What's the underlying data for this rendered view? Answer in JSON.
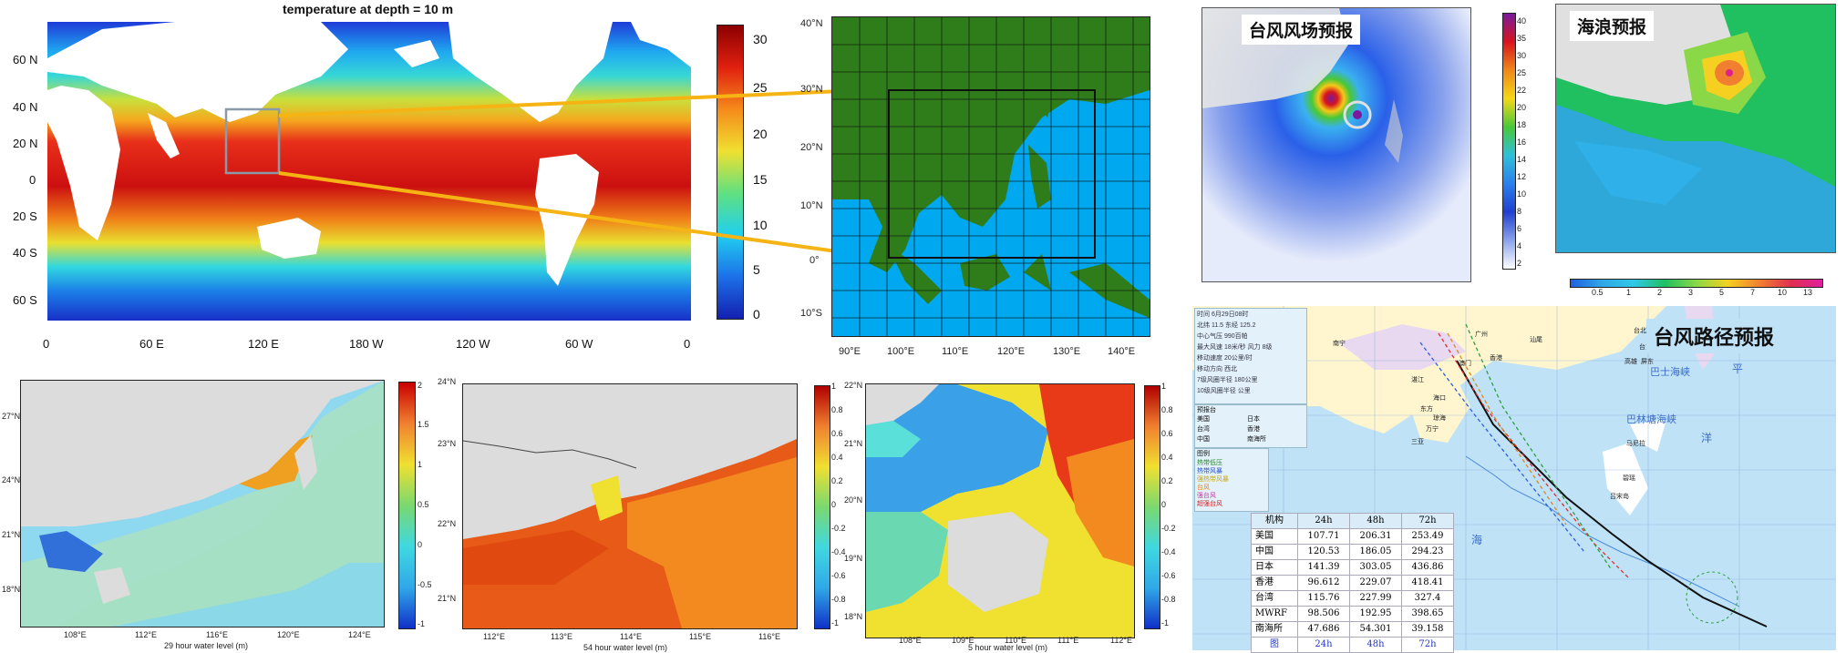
{
  "global_sst": {
    "title": "temperature at depth = 10 m",
    "lat_labels": [
      "60 N",
      "40 N",
      "20 N",
      "0",
      "20 S",
      "40 S",
      "60 S"
    ],
    "lon_labels": [
      "0",
      "60 E",
      "120 E",
      "180 W",
      "120 W",
      "60 W",
      "0"
    ],
    "colorbar_ticks": [
      "30",
      "25",
      "20",
      "15",
      "10",
      "5",
      "0"
    ]
  },
  "domain_map": {
    "lat_labels": [
      "40°N",
      "30°N",
      "20°N",
      "10°N",
      "0°",
      "10°S"
    ],
    "lon_labels": [
      "90°E",
      "100°E",
      "110°E",
      "120°E",
      "130°E",
      "140°E"
    ]
  },
  "typhoon_wind": {
    "label": "台风风场预报",
    "colorbar_ticks": [
      "40",
      "35",
      "30",
      "25",
      "22",
      "20",
      "18",
      "16",
      "14",
      "12",
      "10",
      "8",
      "6",
      "4",
      "2"
    ]
  },
  "wave": {
    "label": "海浪预报",
    "colorbar_ticks": [
      "0.5",
      "1",
      "2",
      "3",
      "5",
      "7",
      "10",
      "13"
    ]
  },
  "track": {
    "label": "台风路径预报",
    "info_lines": [
      "时间 6月29日08时",
      "北纬 11.5  东经 125.2",
      "中心气压 990百帕",
      "最大风速 18米/秒  风力 8级",
      "移动速度 20公里/时",
      "移动方向 西北",
      "7级风圈半径 180公里",
      "10级风圈半径 公里"
    ],
    "legend_title": "预报台",
    "legend_items": [
      "美国",
      "日本",
      "台湾",
      "香港",
      "中国",
      "南海所"
    ],
    "legend2_title": "图例",
    "legend2_items": [
      "热带低压",
      "热带风暴",
      "强热带风暴",
      "台风",
      "强台风",
      "超强台风"
    ],
    "sea_labels": [
      "巴士海峡",
      "巴林塘海峡",
      "洋",
      "海",
      "平"
    ],
    "place_labels": [
      "南宁",
      "广州",
      "汕尾",
      "香港",
      "澳门",
      "湛江",
      "海口",
      "三亚",
      "万宁",
      "琼海",
      "东方",
      "台北",
      "台东",
      "屏东",
      "高雄",
      "马尼拉",
      "碧瑶",
      "吕宋岛"
    ],
    "table": {
      "headers": [
        "机构",
        "24h",
        "48h",
        "72h"
      ],
      "rows": [
        [
          "美国",
          "107.71",
          "206.31",
          "253.49"
        ],
        [
          "中国",
          "120.53",
          "186.05",
          "294.23"
        ],
        [
          "日本",
          "141.39",
          "303.05",
          "436.86"
        ],
        [
          "香港",
          "96.612",
          "229.07",
          "418.41"
        ],
        [
          "台湾",
          "115.76",
          "227.99",
          "327.4"
        ],
        [
          "MWRF",
          "98.506",
          "192.95",
          "398.65"
        ],
        [
          "南海所",
          "47.686",
          "54.301",
          "39.158"
        ]
      ],
      "footer": [
        "图",
        "24h",
        "48h",
        "72h"
      ]
    }
  },
  "water_a": {
    "caption": "29 hour water level (m)",
    "lat_labels": [
      "27°N",
      "24°N",
      "21°N",
      "18°N"
    ],
    "lon_labels": [
      "108°E",
      "112°E",
      "116°E",
      "120°E",
      "124°E"
    ],
    "colorbar_ticks": [
      "2",
      "1.5",
      "1",
      "0.5",
      "0",
      "-0.5",
      "-1"
    ]
  },
  "water_b": {
    "caption": "54 hour water level (m)",
    "lat_labels": [
      "24°N",
      "23°N",
      "22°N",
      "21°N"
    ],
    "lon_labels": [
      "112°E",
      "113°E",
      "114°E",
      "115°E",
      "116°E"
    ],
    "colorbar_ticks": [
      "1",
      "0.8",
      "0.6",
      "0.4",
      "0.2",
      "0",
      "-0.2",
      "-0.4",
      "-0.6",
      "-0.8",
      "-1"
    ]
  },
  "water_c": {
    "caption": "5 hour water level (m)",
    "lat_labels": [
      "22°N",
      "21°N",
      "20°N",
      "19°N",
      "18°N"
    ],
    "lon_labels": [
      "108°E",
      "109°E",
      "110°E",
      "111°E",
      "112°E"
    ],
    "colorbar_ticks": [
      "1",
      "0.8",
      "0.6",
      "0.4",
      "0.2",
      "0",
      "-0.2",
      "-0.4",
      "-0.6",
      "-0.8",
      "-1"
    ]
  },
  "colors": {
    "land_green": "#2f7d1a",
    "ocean_blue": "#00a8f0",
    "highlight_orange": "#f5b414",
    "box_gray": "#8a9aa8"
  }
}
